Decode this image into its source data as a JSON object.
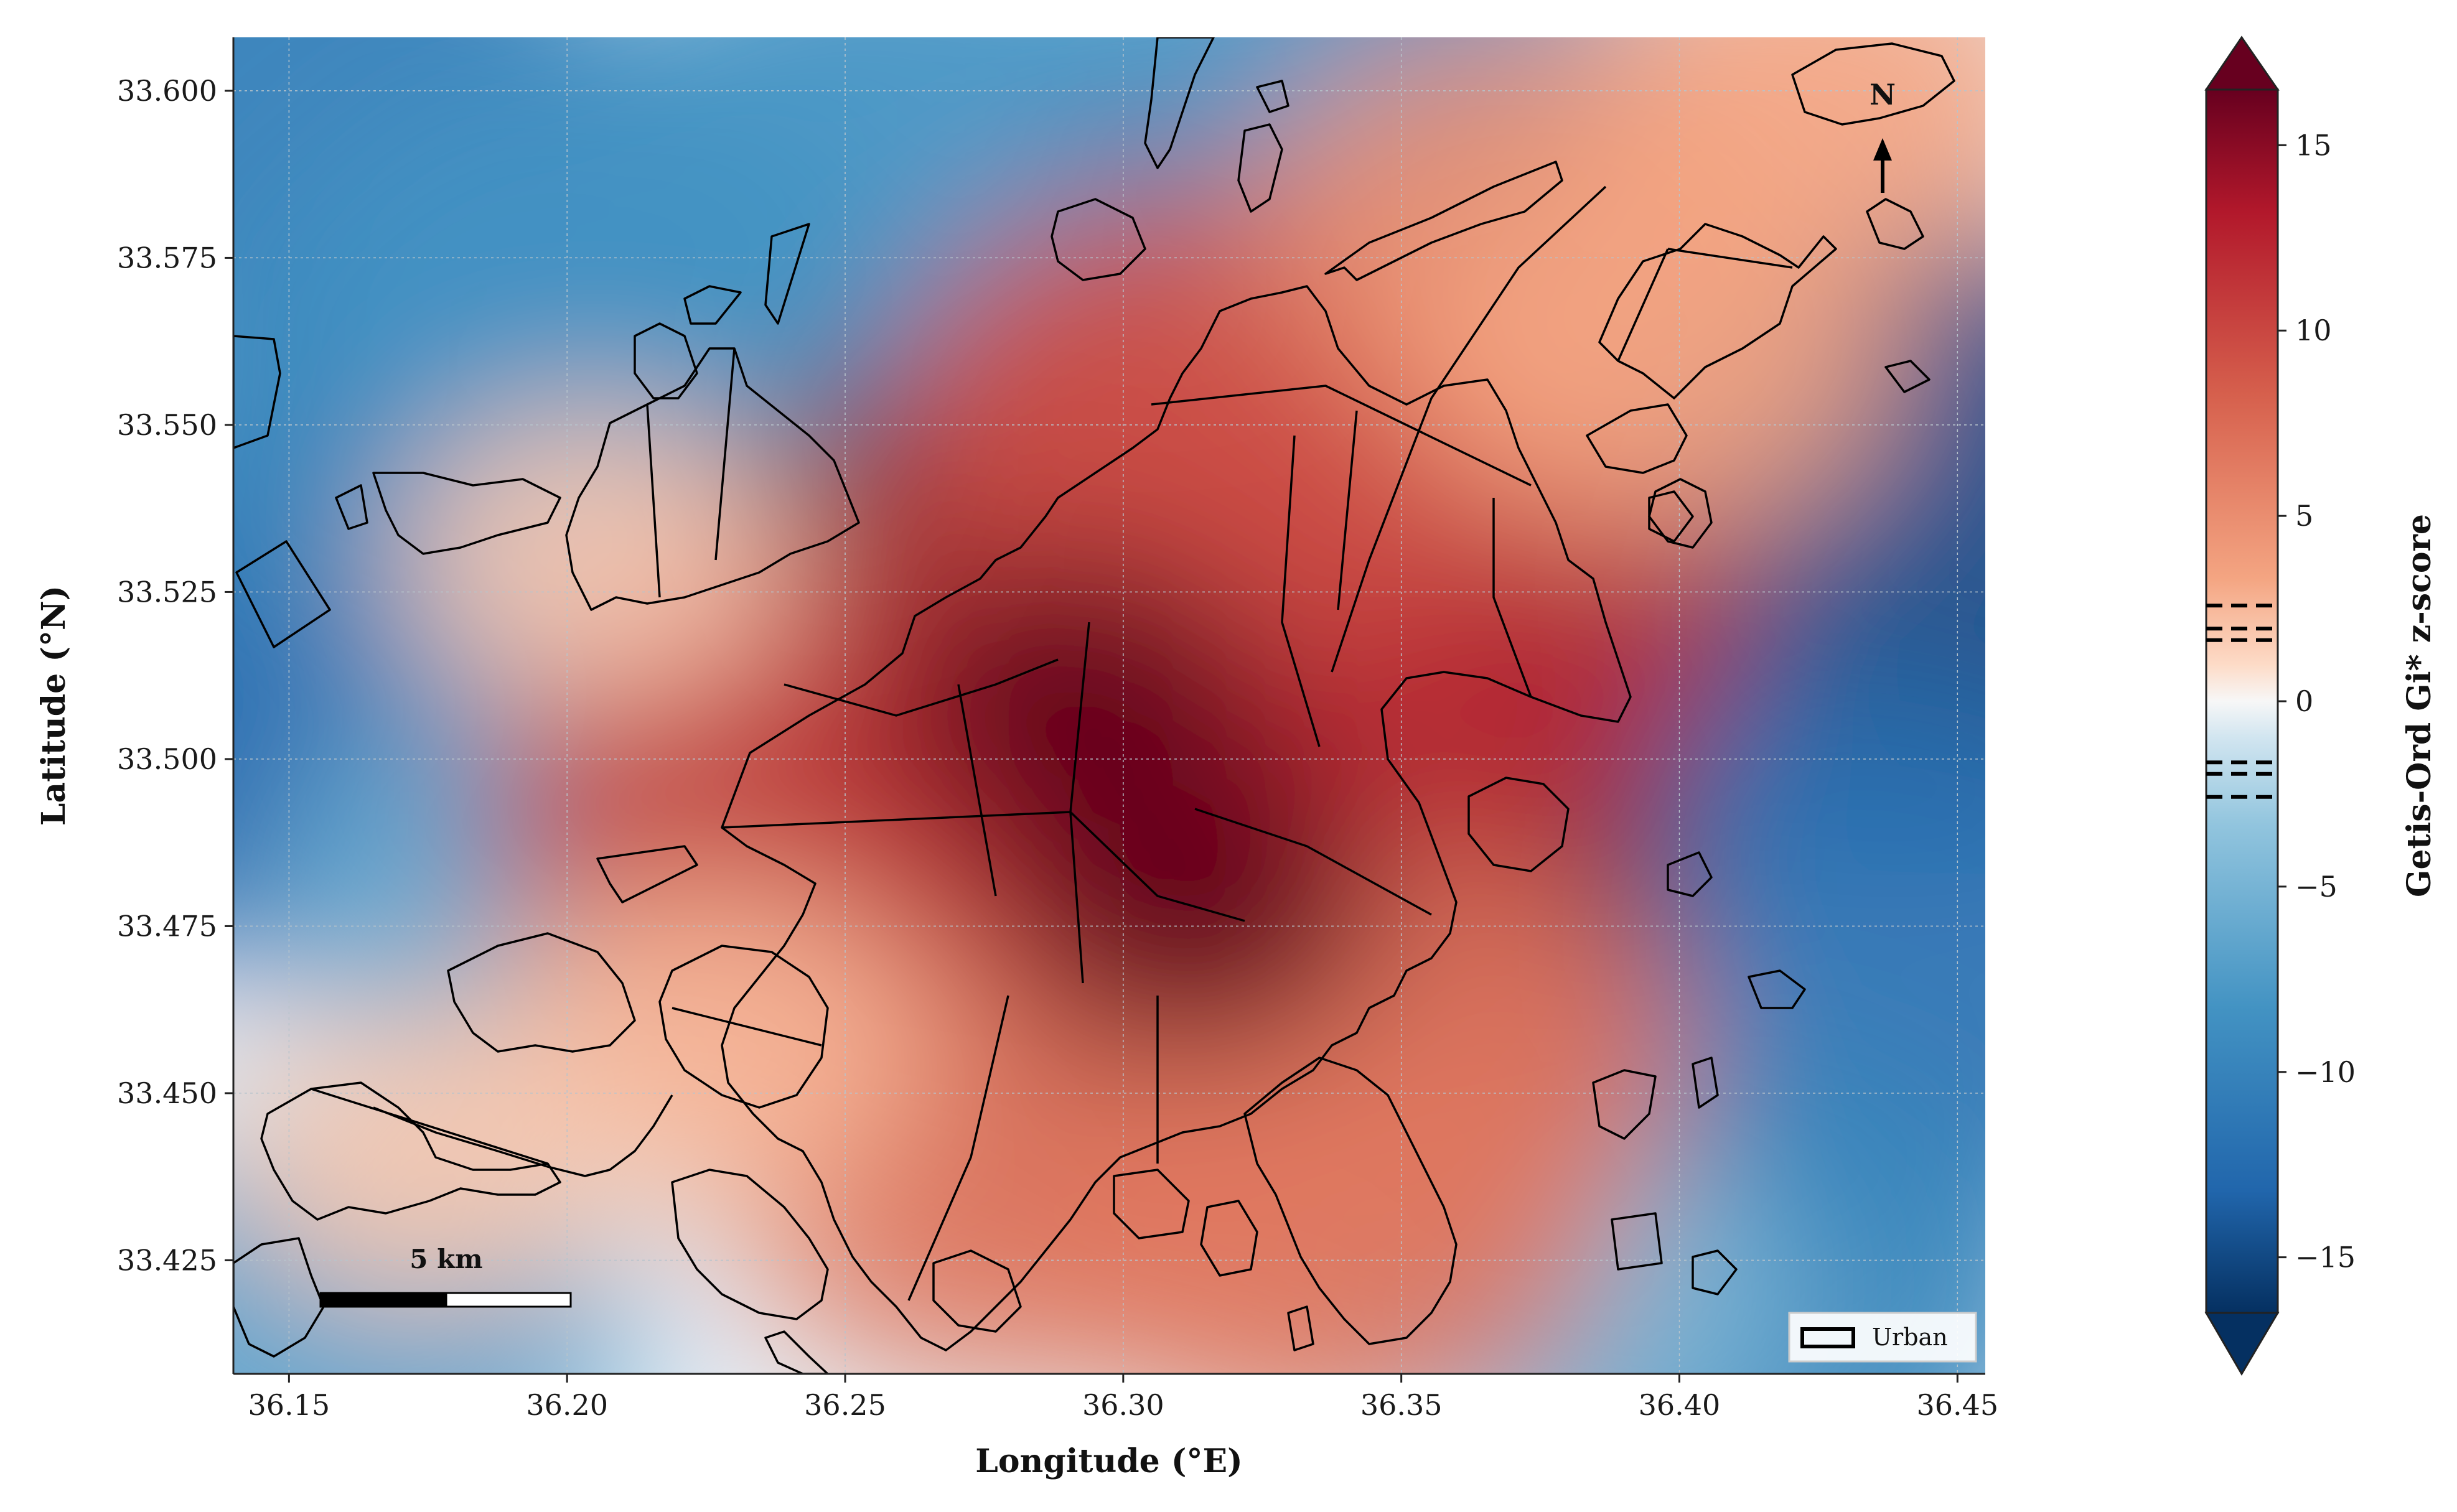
{
  "map": {
    "xlabel": "Longitude (°E)",
    "ylabel": "Latitude (°N)",
    "x_ticks": [
      "36.15",
      "36.20",
      "36.25",
      "36.30",
      "36.35",
      "36.40",
      "36.45"
    ],
    "y_ticks": [
      "33.600",
      "33.575",
      "33.550",
      "33.525",
      "33.500",
      "33.475",
      "33.450",
      "33.425"
    ],
    "x_range": [
      36.14,
      36.455
    ],
    "y_range": [
      33.408,
      33.608
    ],
    "grid": true,
    "scale_bar": {
      "label": "5 km"
    },
    "north_arrow": {
      "label": "N"
    },
    "legend": {
      "label": "Urban",
      "placement": "bottom-right"
    }
  },
  "colorbar": {
    "label": "Getis-Ord Gi* z-score",
    "ticks": [
      "15",
      "10",
      "5",
      "0",
      "−5",
      "−10",
      "−15"
    ],
    "range": [
      -16.5,
      16.5
    ],
    "extend": "both",
    "colormap": "RdBu_r",
    "significance_lines": [
      2.58,
      1.96,
      1.65,
      -1.65,
      -1.96,
      -2.58
    ],
    "colors": {
      "high": "#67001f",
      "mid": "#f7f7f7",
      "low": "#053061"
    }
  },
  "chart_data": {
    "type": "heatmap",
    "title": "",
    "xlabel": "Longitude (°E)",
    "ylabel": "Latitude (°N)",
    "xlim": [
      36.14,
      36.455
    ],
    "ylim": [
      33.408,
      33.608
    ],
    "value_label": "Getis-Ord Gi* z-score",
    "value_range": [
      -16.5,
      16.5
    ],
    "hotspots": [
      {
        "lon": 36.292,
        "lat": 33.508,
        "z": 16
      },
      {
        "lon": 36.312,
        "lat": 33.478,
        "z": 16
      },
      {
        "lon": 36.342,
        "lat": 33.522,
        "z": 11
      },
      {
        "lon": 36.318,
        "lat": 33.55,
        "z": 9
      },
      {
        "lon": 36.372,
        "lat": 33.58,
        "z": 6
      },
      {
        "lon": 36.425,
        "lat": 33.598,
        "z": 5
      },
      {
        "lon": 36.395,
        "lat": 33.56,
        "z": 5
      },
      {
        "lon": 36.25,
        "lat": 33.492,
        "z": 10
      },
      {
        "lon": 36.28,
        "lat": 33.438,
        "z": 7
      },
      {
        "lon": 36.335,
        "lat": 33.43,
        "z": 7
      },
      {
        "lon": 36.35,
        "lat": 33.455,
        "z": 7
      },
      {
        "lon": 36.225,
        "lat": 33.458,
        "z": 4
      },
      {
        "lon": 36.205,
        "lat": 33.53,
        "z": 3
      },
      {
        "lon": 36.175,
        "lat": 33.44,
        "z": 3
      }
    ],
    "coldspots": [
      {
        "lon": 36.152,
        "lat": 33.512,
        "z": -12
      },
      {
        "lon": 36.15,
        "lat": 33.598,
        "z": -10
      },
      {
        "lon": 36.18,
        "lat": 33.55,
        "z": -9
      },
      {
        "lon": 36.205,
        "lat": 33.57,
        "z": -8
      },
      {
        "lon": 36.44,
        "lat": 33.532,
        "z": -14
      },
      {
        "lon": 36.43,
        "lat": 33.468,
        "z": -11
      },
      {
        "lon": 36.41,
        "lat": 33.42,
        "z": -9
      },
      {
        "lon": 36.26,
        "lat": 33.595,
        "z": -8
      },
      {
        "lon": 36.345,
        "lat": 33.6,
        "z": -8
      },
      {
        "lon": 36.195,
        "lat": 33.48,
        "z": -6
      },
      {
        "lon": 36.16,
        "lat": 33.415,
        "z": -7
      },
      {
        "lon": 36.375,
        "lat": 33.42,
        "z": -5
      }
    ],
    "layers": [
      {
        "name": "Urban",
        "kind": "polygon-outline"
      }
    ]
  }
}
